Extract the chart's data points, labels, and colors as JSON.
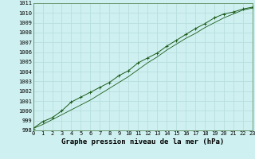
{
  "title": "Graphe pression niveau de la mer (hPa)",
  "bg_color": "#cff0f0",
  "grid_color": "#b8dede",
  "line_color": "#1a5c1a",
  "xlim": [
    0,
    23
  ],
  "ylim": [
    998,
    1011
  ],
  "xticks": [
    0,
    1,
    2,
    3,
    4,
    5,
    6,
    7,
    8,
    9,
    10,
    11,
    12,
    13,
    14,
    15,
    16,
    17,
    18,
    19,
    20,
    21,
    22,
    23
  ],
  "yticks": [
    998,
    999,
    1000,
    1001,
    1002,
    1003,
    1004,
    1005,
    1006,
    1007,
    1008,
    1009,
    1010,
    1011
  ],
  "series1_x": [
    0,
    1,
    2,
    3,
    4,
    5,
    6,
    7,
    8,
    9,
    10,
    11,
    12,
    13,
    14,
    15,
    16,
    17,
    18,
    19,
    20,
    21,
    22,
    23
  ],
  "series1_y": [
    998.2,
    998.9,
    999.3,
    1000.0,
    1000.9,
    1001.4,
    1001.9,
    1002.4,
    1002.9,
    1003.6,
    1004.1,
    1004.9,
    1005.4,
    1005.9,
    1006.6,
    1007.2,
    1007.8,
    1008.4,
    1008.9,
    1009.5,
    1009.9,
    1010.1,
    1010.4,
    1010.6
  ],
  "series2_x": [
    0,
    1,
    2,
    3,
    4,
    5,
    6,
    7,
    8,
    9,
    10,
    11,
    12,
    13,
    14,
    15,
    16,
    17,
    18,
    19,
    20,
    21,
    22,
    23
  ],
  "series2_y": [
    998.2,
    998.6,
    999.1,
    999.6,
    1000.1,
    1000.6,
    1001.1,
    1001.7,
    1002.3,
    1002.9,
    1003.5,
    1004.2,
    1004.9,
    1005.5,
    1006.2,
    1006.8,
    1007.4,
    1007.9,
    1008.5,
    1009.0,
    1009.5,
    1009.9,
    1010.3,
    1010.5
  ],
  "tick_fontsize": 5,
  "title_fontsize": 6.5,
  "marker_size": 2.5,
  "lw1": 0.7,
  "lw2": 0.6
}
